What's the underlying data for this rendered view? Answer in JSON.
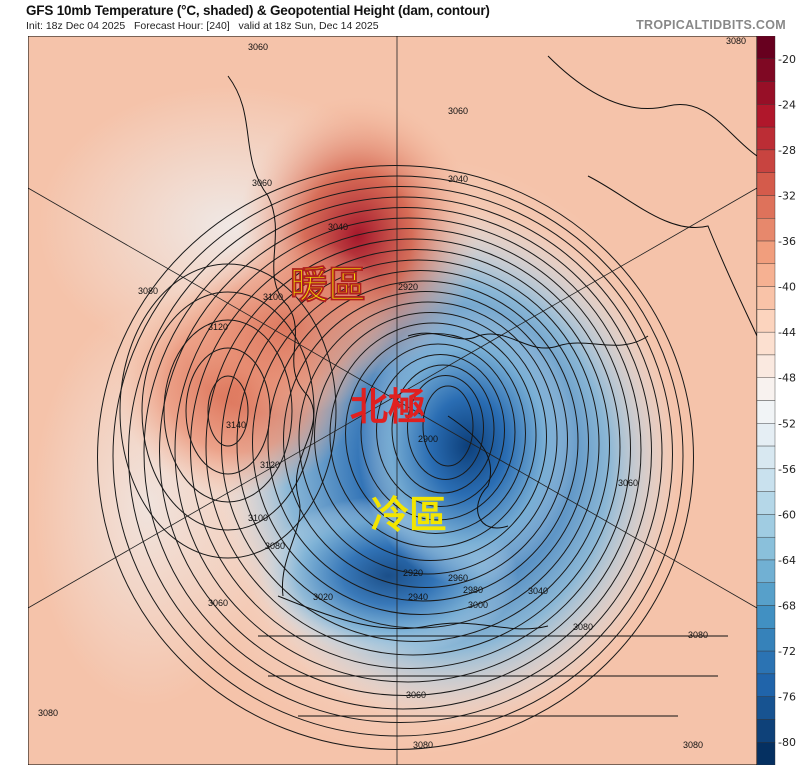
{
  "header": {
    "title": "GFS 10mb Temperature (°C, shaded) & Geopotential Height (dam, contour)",
    "init": "Init: 18z Dec 04 2025",
    "forecast_hour": "Forecast Hour: [240]",
    "valid": "valid at 18z Sun, Dec 14 2025",
    "brand": "TROPICALTIDBITS.COM"
  },
  "annotations": {
    "warm": "暖區",
    "pole": "北極",
    "cold": "冷區"
  },
  "contour_labels": [
    "3060",
    "3080",
    "3060",
    "3040",
    "3040",
    "3060",
    "3080",
    "3100",
    "3120",
    "3140",
    "3120",
    "3100",
    "3080",
    "3060",
    "2920",
    "2900",
    "2920",
    "2940",
    "2960",
    "2980",
    "3000",
    "3020",
    "3040",
    "3060",
    "3080",
    "3080",
    "3060",
    "3080",
    "3080",
    "3080"
  ],
  "colorbar": {
    "unit": "°C",
    "ticks": [
      "-20",
      "-24",
      "-28",
      "-32",
      "-36",
      "-40",
      "-44",
      "-48",
      "-52",
      "-56",
      "-60",
      "-64",
      "-68",
      "-72",
      "-76",
      "-80"
    ],
    "stops": [
      "#67001f",
      "#b2182b",
      "#d6604d",
      "#f4a582",
      "#fddbc7",
      "#f7f7f7",
      "#d1e5f0",
      "#92c5de",
      "#4393c3",
      "#2166ac",
      "#053061"
    ]
  }
}
